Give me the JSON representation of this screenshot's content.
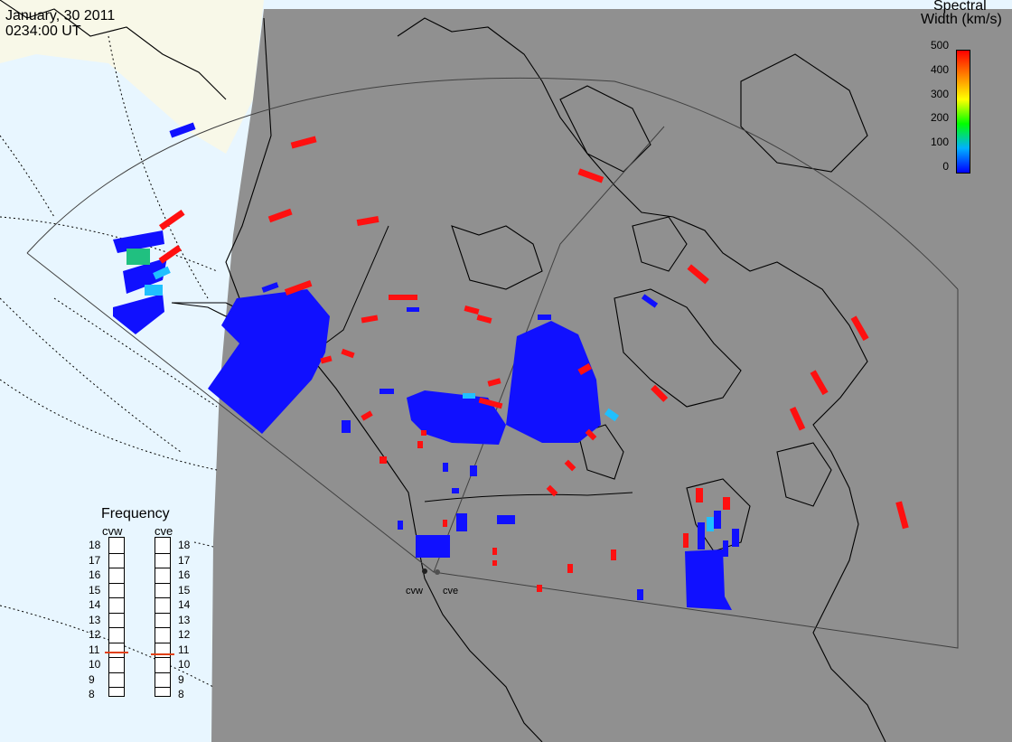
{
  "header": {
    "date": "January, 30 2011",
    "time": "0234:00 UT"
  },
  "colorbar": {
    "title_line1": "Spectral",
    "title_line2": "Width (km/s)",
    "ticks": [
      "500",
      "400",
      "300",
      "200",
      "100",
      "0"
    ],
    "range": [
      0,
      500
    ],
    "colors": [
      "#0000ff",
      "#00b0ff",
      "#00ff00",
      "#ffff00",
      "#ff8000",
      "#ff0000"
    ]
  },
  "frequency_panel": {
    "title": "Frequency",
    "radars": [
      {
        "code": "cvw",
        "selected_freq_mhz": 10.8
      },
      {
        "code": "cve",
        "selected_freq_mhz": 10.7
      }
    ],
    "scale_labels": [
      "18",
      "17",
      "16",
      "15",
      "14",
      "13",
      "12",
      "11",
      "10",
      "9",
      "8"
    ]
  },
  "radar_sites": [
    {
      "code": "cvw"
    },
    {
      "code": "cve"
    }
  ],
  "colors": {
    "night_shade": "#909090",
    "ocean_day": "#e8f6ff",
    "land_day": "#f8f8e8",
    "low_width": "#1010ff",
    "high_width": "#ff1010",
    "mid_width": "#20c0ff"
  }
}
